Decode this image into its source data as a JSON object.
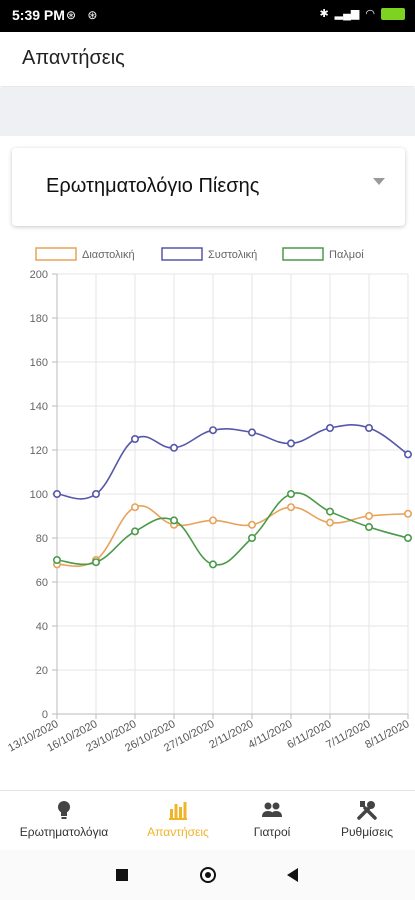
{
  "status_bar": {
    "time": "5:39 PM"
  },
  "app_bar": {
    "title": "Απαντήσεις"
  },
  "questionnaire_select": {
    "selected": "Ερωτηματολόγιο Πίεσης"
  },
  "chart_data": {
    "type": "line",
    "categories": [
      "13/10/2020",
      "16/10/2020",
      "23/10/2020",
      "26/10/2020",
      "27/10/2020",
      "2/11/2020",
      "4/11/2020",
      "6/11/2020",
      "7/11/2020",
      "8/11/2020"
    ],
    "series": [
      {
        "name": "Διαστολική",
        "color": "#e8a25a",
        "values": [
          68,
          70,
          94,
          86,
          88,
          86,
          94,
          87,
          90,
          91
        ]
      },
      {
        "name": "Συστολική",
        "color": "#5557a8",
        "values": [
          100,
          100,
          125,
          121,
          129,
          128,
          123,
          130,
          130,
          118
        ]
      },
      {
        "name": "Παλμοί",
        "color": "#4a9a4a",
        "values": [
          70,
          69,
          83,
          88,
          68,
          80,
          100,
          92,
          85,
          80
        ]
      }
    ],
    "yticks": [
      "0",
      "20",
      "40",
      "60",
      "80",
      "100",
      "120",
      "140",
      "160",
      "180",
      "200"
    ],
    "ylim": [
      0,
      200
    ],
    "grid": true,
    "legend_position": "top"
  },
  "bottom_nav": {
    "items": [
      {
        "label": "Ερωτηματολόγια",
        "icon": "lightbulb-icon"
      },
      {
        "label": "Απαντήσεις",
        "icon": "bar-chart-icon"
      },
      {
        "label": "Γιατροί",
        "icon": "people-icon"
      },
      {
        "label": "Ρυθμίσεις",
        "icon": "tools-icon"
      }
    ],
    "active_color": "#f0b429"
  }
}
